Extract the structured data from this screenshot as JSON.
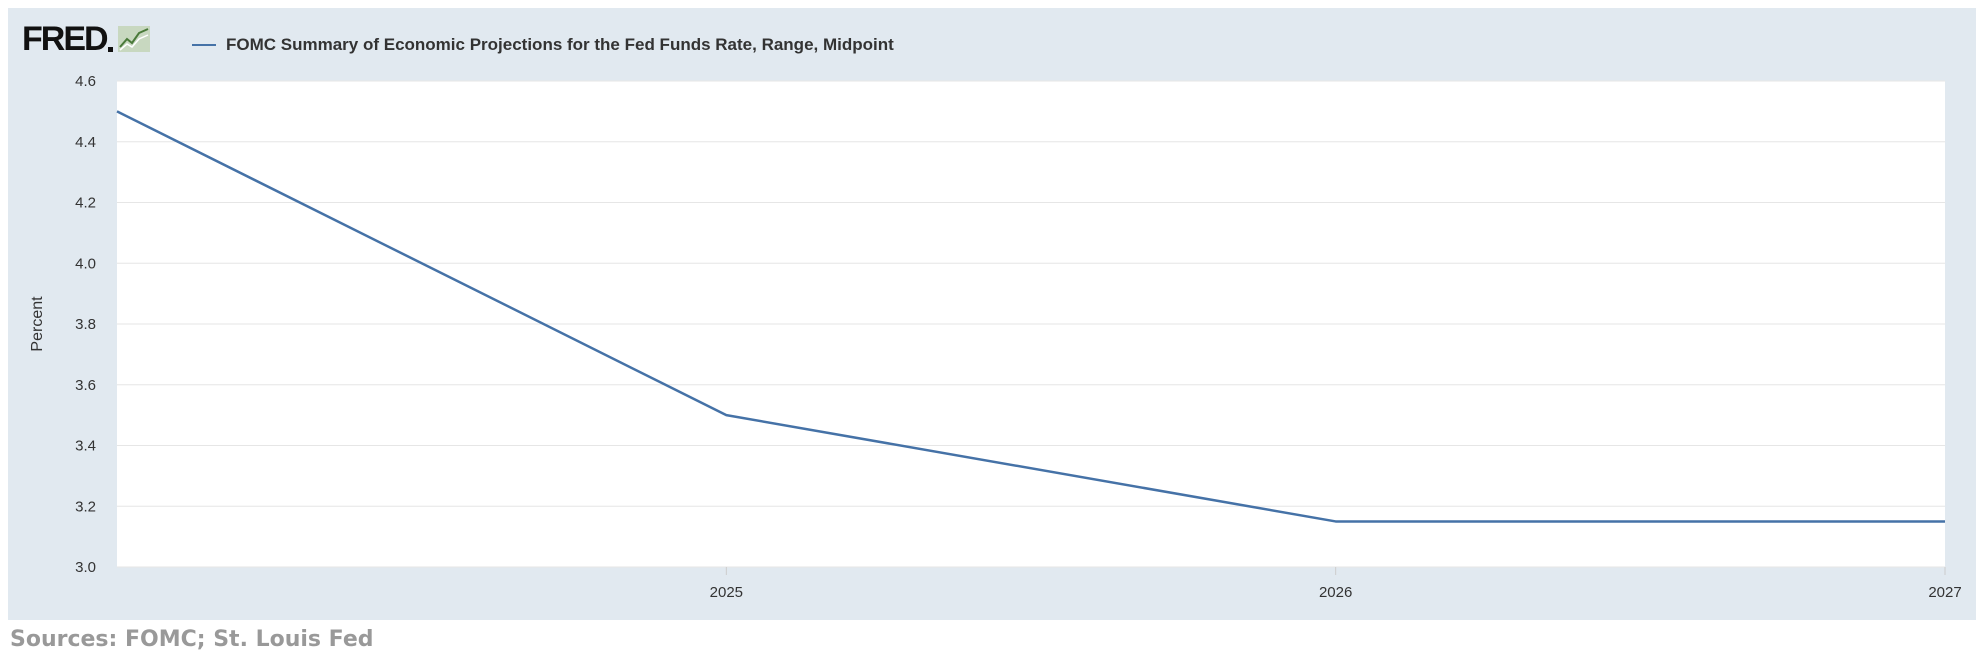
{
  "logo": {
    "text": "FRED"
  },
  "footer": {
    "sources": "Sources: FOMC; St. Louis Fed"
  },
  "chart_data": {
    "type": "line",
    "title": "",
    "xlabel": "",
    "ylabel": "Percent",
    "ylim": [
      3.0,
      4.6
    ],
    "xlim": [
      2024,
      2027
    ],
    "y_ticks": [
      "3.0",
      "3.2",
      "3.4",
      "3.6",
      "3.8",
      "4.0",
      "4.2",
      "4.4",
      "4.6"
    ],
    "x_ticks": [
      "2025",
      "2026",
      "2027"
    ],
    "grid": true,
    "legend_position": "top-left",
    "series": [
      {
        "name": "FOMC Summary of Economic Projections for the Fed Funds Rate, Range, Midpoint",
        "color": "#4572a7",
        "x": [
          2024,
          2025,
          2026,
          2027
        ],
        "values": [
          4.5,
          3.5,
          3.15,
          3.15
        ]
      }
    ]
  }
}
